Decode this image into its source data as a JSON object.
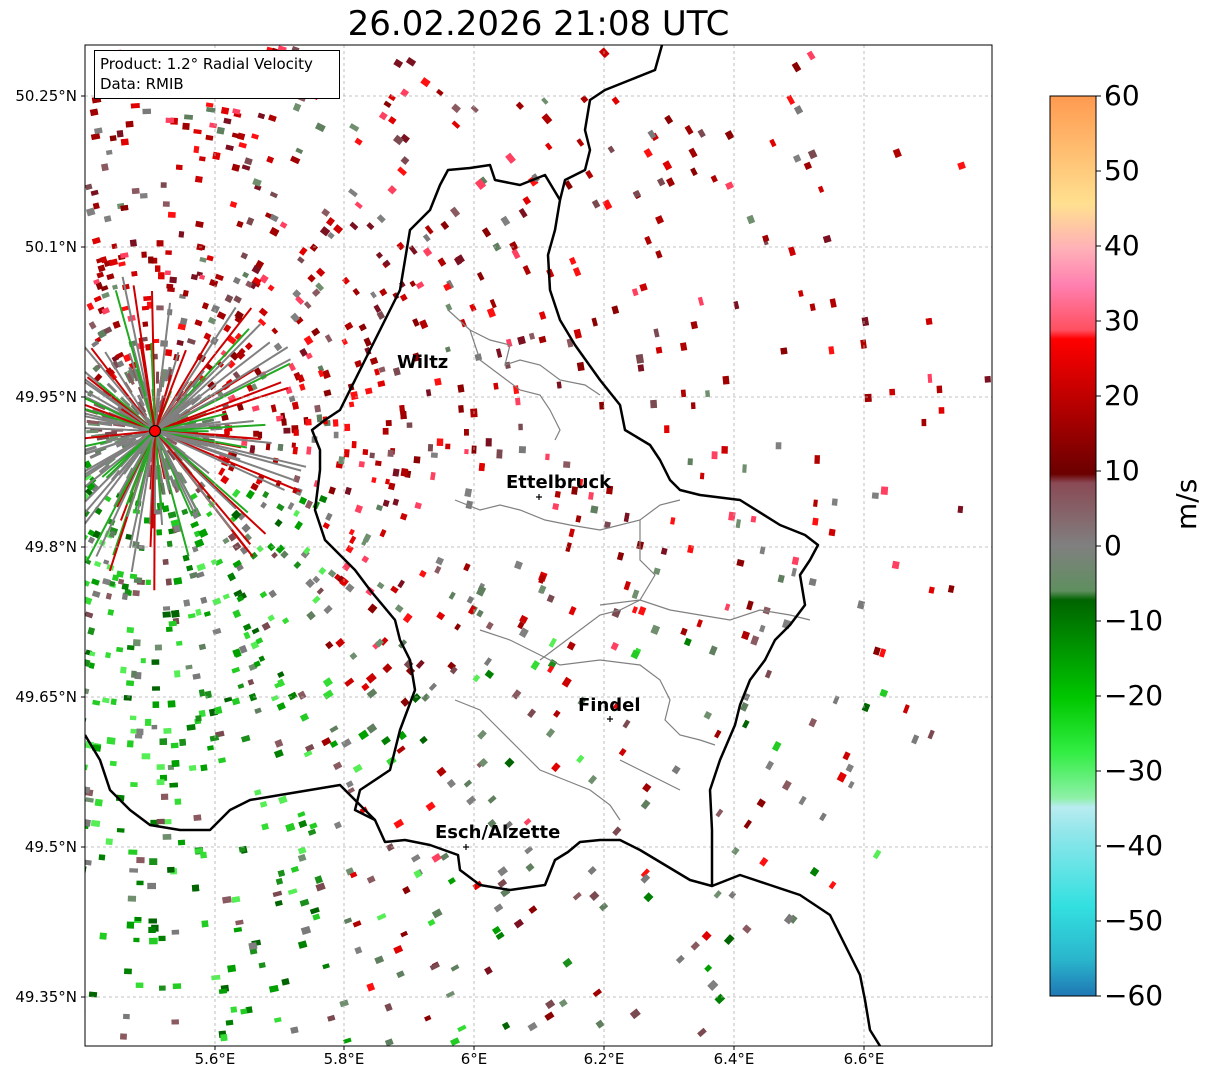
{
  "title": "26.02.2026 21:08 UTC",
  "info_box": {
    "product": "Product: 1.2° Radial Velocity",
    "source": "Data: RMIB"
  },
  "axes": {
    "lat_ticks": [
      "50.25°N",
      "50.1°N",
      "49.95°N",
      "49.8°N",
      "49.65°N",
      "49.5°N",
      "49.35°N"
    ],
    "lon_ticks": [
      "5.6°E",
      "5.8°E",
      "6°E",
      "6.2°E",
      "6.4°E",
      "6.6°E"
    ]
  },
  "colorbar": {
    "label": "m/s",
    "ticks": [
      "60",
      "50",
      "40",
      "30",
      "20",
      "10",
      "0",
      "−10",
      "−20",
      "−30",
      "−40",
      "−50",
      "−60"
    ],
    "min": -60,
    "max": 60
  },
  "cities": [
    {
      "name": "Wiltz"
    },
    {
      "name": "Ettelbruck"
    },
    {
      "name": "Findel"
    },
    {
      "name": "Esch/Alzette"
    }
  ],
  "colors": {
    "border": "#000000",
    "canton": "#808080",
    "grid": "#b0b0b0",
    "radar_marker": "#ff0000"
  }
}
